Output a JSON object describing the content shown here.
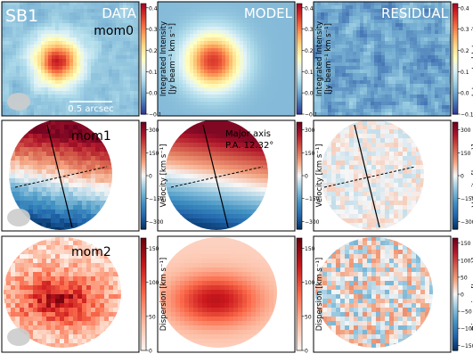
{
  "figure": {
    "galaxy": "SB1",
    "columns": [
      "DATA",
      "MODEL",
      "RESIDUAL"
    ],
    "scale_bar": "0.5 arcsec",
    "rows": [
      {
        "moment": "mom0",
        "colorbar_label_1": "Integrated Intensity",
        "colorbar_label_2": "[Jy beam⁻¹ km s⁻¹]",
        "ticks": [
          "0.4",
          "0.3",
          "0.2",
          "0.1",
          "0.0",
          "−0.1"
        ],
        "tick_values": [
          0.4,
          0.3,
          0.2,
          0.1,
          0.0,
          -0.1
        ],
        "cmap": "RdYlBu_r",
        "vmin": -0.1,
        "vmax": 0.42
      },
      {
        "moment": "mom1",
        "colorbar_label_1": "Velocity [km s⁻¹]",
        "colorbar_label_2": "",
        "ticks": [
          "300",
          "150",
          "0",
          "−150",
          "−300"
        ],
        "tick_values": [
          300,
          150,
          0,
          -150,
          -300
        ],
        "cmap": "RdBu_r",
        "vmin": -350,
        "vmax": 350,
        "annotation_line1": "Major axis",
        "annotation_line2": "P.A. 12.32°"
      },
      {
        "moment": "mom2",
        "colorbar_label_1": "Dispersion [km s⁻¹]",
        "colorbar_label_2": "",
        "data_ticks": [
          "150",
          "100",
          "50",
          "0"
        ],
        "data_tick_values": [
          150,
          100,
          50,
          0
        ],
        "residual_ticks": [
          "150",
          "100",
          "50",
          "0",
          "−50",
          "−100",
          "−150"
        ],
        "residual_tick_values": [
          150,
          100,
          50,
          0,
          -50,
          -100,
          -150
        ],
        "cmap_data": "Reds",
        "cmap_residual": "RdBu_r",
        "vmin": 0,
        "vmax": 165
      }
    ]
  }
}
